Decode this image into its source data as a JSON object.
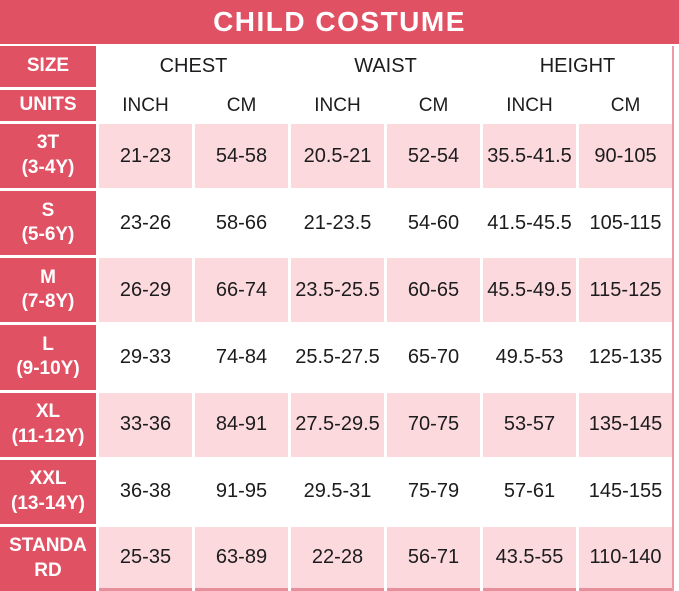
{
  "title": "CHILD COSTUME",
  "colors": {
    "red": "#e15164",
    "light_pink": "#fbd9dd",
    "edge_pink": "#ec9aa6",
    "text_dark": "#1c1c1e",
    "white": "#ffffff"
  },
  "table": {
    "header": {
      "size": "SIZE",
      "units": "UNITS",
      "groups": [
        "CHEST",
        "WAIST",
        "HEIGHT"
      ],
      "unit_cols": [
        "INCH",
        "CM",
        "INCH",
        "CM",
        "INCH",
        "CM"
      ]
    },
    "rows": [
      {
        "size_lines": [
          "3T",
          "(3-4Y)"
        ],
        "values": [
          "21-23",
          "54-58",
          "20.5-21",
          "52-54",
          "35.5-41.5",
          "90-105"
        ]
      },
      {
        "size_lines": [
          "S",
          "(5-6Y)"
        ],
        "values": [
          "23-26",
          "58-66",
          "21-23.5",
          "54-60",
          "41.5-45.5",
          "105-115"
        ]
      },
      {
        "size_lines": [
          "M",
          "(7-8Y)"
        ],
        "values": [
          "26-29",
          "66-74",
          "23.5-25.5",
          "60-65",
          "45.5-49.5",
          "115-125"
        ]
      },
      {
        "size_lines": [
          "L",
          "(9-10Y)"
        ],
        "values": [
          "29-33",
          "74-84",
          "25.5-27.5",
          "65-70",
          "49.5-53",
          "125-135"
        ]
      },
      {
        "size_lines": [
          "XL",
          "(11-12Y)"
        ],
        "values": [
          "33-36",
          "84-91",
          "27.5-29.5",
          "70-75",
          "53-57",
          "135-145"
        ]
      },
      {
        "size_lines": [
          "XXL",
          "(13-14Y)"
        ],
        "values": [
          "36-38",
          "91-95",
          "29.5-31",
          "75-79",
          "57-61",
          "145-155"
        ]
      },
      {
        "size_lines": [
          "STANDA",
          "RD"
        ],
        "values": [
          "25-35",
          "63-89",
          "22-28",
          "56-71",
          "43.5-55",
          "110-140"
        ]
      }
    ]
  },
  "chart_data": {
    "type": "table",
    "title": "CHILD COSTUME",
    "columns": [
      "SIZE",
      "CHEST INCH",
      "CHEST CM",
      "WAIST INCH",
      "WAIST CM",
      "HEIGHT INCH",
      "HEIGHT CM"
    ],
    "rows": [
      [
        "3T (3-4Y)",
        "21-23",
        "54-58",
        "20.5-21",
        "52-54",
        "35.5-41.5",
        "90-105"
      ],
      [
        "S (5-6Y)",
        "23-26",
        "58-66",
        "21-23.5",
        "54-60",
        "41.5-45.5",
        "105-115"
      ],
      [
        "M (7-8Y)",
        "26-29",
        "66-74",
        "23.5-25.5",
        "60-65",
        "45.5-49.5",
        "115-125"
      ],
      [
        "L (9-10Y)",
        "29-33",
        "74-84",
        "25.5-27.5",
        "65-70",
        "49.5-53",
        "125-135"
      ],
      [
        "XL (11-12Y)",
        "33-36",
        "84-91",
        "27.5-29.5",
        "70-75",
        "53-57",
        "135-145"
      ],
      [
        "XXL (13-14Y)",
        "36-38",
        "91-95",
        "29.5-31",
        "75-79",
        "57-61",
        "145-155"
      ],
      [
        "STANDARD",
        "25-35",
        "63-89",
        "22-28",
        "56-71",
        "43.5-55",
        "110-140"
      ]
    ]
  }
}
